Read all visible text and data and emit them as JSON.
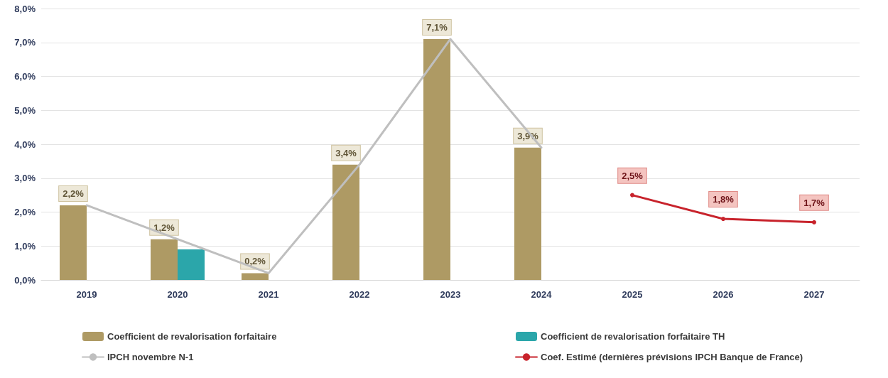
{
  "chart_data": {
    "type": "bar",
    "categories": [
      "2019",
      "2020",
      "2021",
      "2022",
      "2023",
      "2024",
      "2025",
      "2026",
      "2027"
    ],
    "series": [
      {
        "name": "Coefficient de revalorisation forfaitaire",
        "color": "#ae9a64",
        "values": [
          2.2,
          1.2,
          0.2,
          3.4,
          7.1,
          3.9,
          null,
          null,
          null
        ],
        "value_labels": [
          "2,2%",
          "1,2%",
          "0,2%",
          "3,4%",
          "7,1%",
          "3,9%",
          null,
          null,
          null
        ]
      },
      {
        "name": "Coefficient de revalorisation forfaitaire TH",
        "color": "#2ba6aa",
        "values": [
          null,
          0.9,
          null,
          null,
          null,
          null,
          null,
          null,
          null
        ]
      },
      {
        "name": "IPCH novembre N-1",
        "type": "line",
        "color": "#bfbfbf",
        "marker": "none",
        "values": [
          2.2,
          1.2,
          0.2,
          3.4,
          7.1,
          3.9,
          null,
          null,
          null
        ]
      },
      {
        "name": "Coef. Estimé (dernières prévisions IPCH Banque de France)",
        "type": "line",
        "color": "#c8232c",
        "marker": "circle",
        "values": [
          null,
          null,
          null,
          null,
          null,
          null,
          2.5,
          1.8,
          1.7
        ],
        "value_labels": [
          null,
          null,
          null,
          null,
          null,
          null,
          "2,5%",
          "1,8%",
          "1,7%"
        ]
      }
    ],
    "ylim": [
      0,
      8
    ],
    "yticks": [
      {
        "value": 0,
        "label": "0,0%"
      },
      {
        "value": 1,
        "label": "1,0%"
      },
      {
        "value": 2,
        "label": "2,0%"
      },
      {
        "value": 3,
        "label": "3,0%"
      },
      {
        "value": 4,
        "label": "4,0%"
      },
      {
        "value": 5,
        "label": "5,0%"
      },
      {
        "value": 6,
        "label": "6,0%"
      },
      {
        "value": 7,
        "label": "7,0%"
      },
      {
        "value": 8,
        "label": "8,0%"
      }
    ],
    "grid": "y",
    "legend": "bottom"
  }
}
